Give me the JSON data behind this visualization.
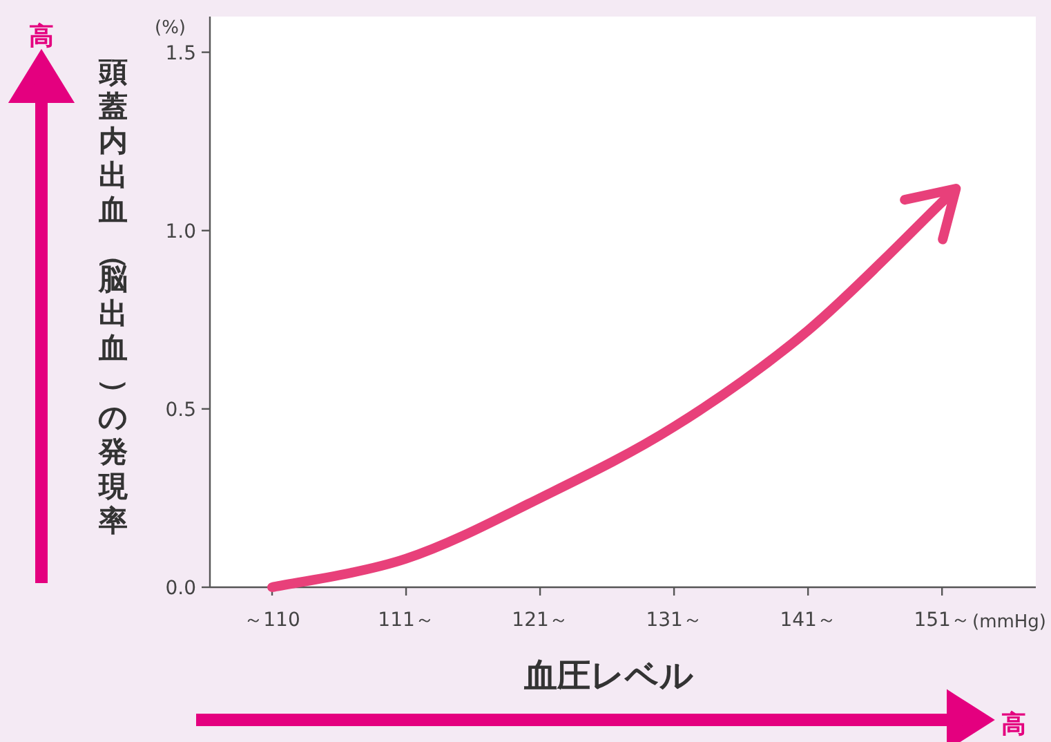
{
  "chart_data": {
    "type": "line",
    "categories": [
      "～110",
      "111～",
      "121～",
      "131～",
      "141～",
      "151～"
    ],
    "series": [
      {
        "color": "#e8407a",
        "values": [
          0,
          0.08,
          0.25,
          0.45,
          0.72,
          1.08
        ]
      }
    ],
    "ylim": [
      0,
      1.6
    ],
    "yticks": [
      {
        "value": 0,
        "label": "0.0"
      },
      {
        "value": 0.5,
        "label": "0.5"
      },
      {
        "value": 1,
        "label": "1.0"
      },
      {
        "value": 1.5,
        "label": "1.5"
      }
    ],
    "xlabel": "血圧レベル",
    "ylabel": "頭蓋内出血（脳出血）の発現率",
    "annotations": [
      "(%)",
      "(mmHg)",
      "高",
      "高"
    ],
    "line_style": "solid"
  }
}
